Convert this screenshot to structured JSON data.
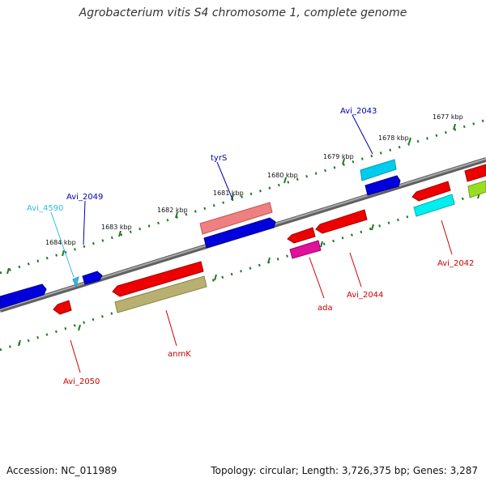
{
  "title": "Agrobacterium vitis S4 chromosome 1, complete genome",
  "footer": {
    "accession": "Accession: NC_011989",
    "topology": "Topology: circular; Length: 3,726,375 bp; Genes: 3,287"
  },
  "colors": {
    "backbone": "#808080",
    "ticks": "#1f7a1f",
    "red": "#ee0000",
    "blue": "#0000dd",
    "cyan": "#00ddee",
    "sky": "#44ccee",
    "pink": "#f08080",
    "magenta": "#e0109a",
    "olive": "#b8b070",
    "lime": "#99dd22"
  },
  "ticks": [
    {
      "label": "1677 kbp"
    },
    {
      "label": "1678 kbp"
    },
    {
      "label": "1679 kbp"
    },
    {
      "label": "1680 kbp"
    },
    {
      "label": "1681 kbp"
    },
    {
      "label": "1682 kbp"
    },
    {
      "label": "1683 kbp"
    },
    {
      "label": "1684 kbp"
    }
  ],
  "labels": [
    {
      "name": "Avi_2043",
      "color": "#0000aa"
    },
    {
      "name": "tyrS",
      "color": "#0000aa"
    },
    {
      "name": "Avi_2049",
      "color": "#0000aa"
    },
    {
      "name": "Avi_4590",
      "color": "#33bbdd"
    },
    {
      "name": "Avi_2042",
      "color": "#cc0000"
    },
    {
      "name": "Avi_2044",
      "color": "#cc0000"
    },
    {
      "name": "ada",
      "color": "#cc0000"
    },
    {
      "name": "anmK",
      "color": "#cc0000"
    },
    {
      "name": "Avi_2050",
      "color": "#cc0000"
    }
  ]
}
